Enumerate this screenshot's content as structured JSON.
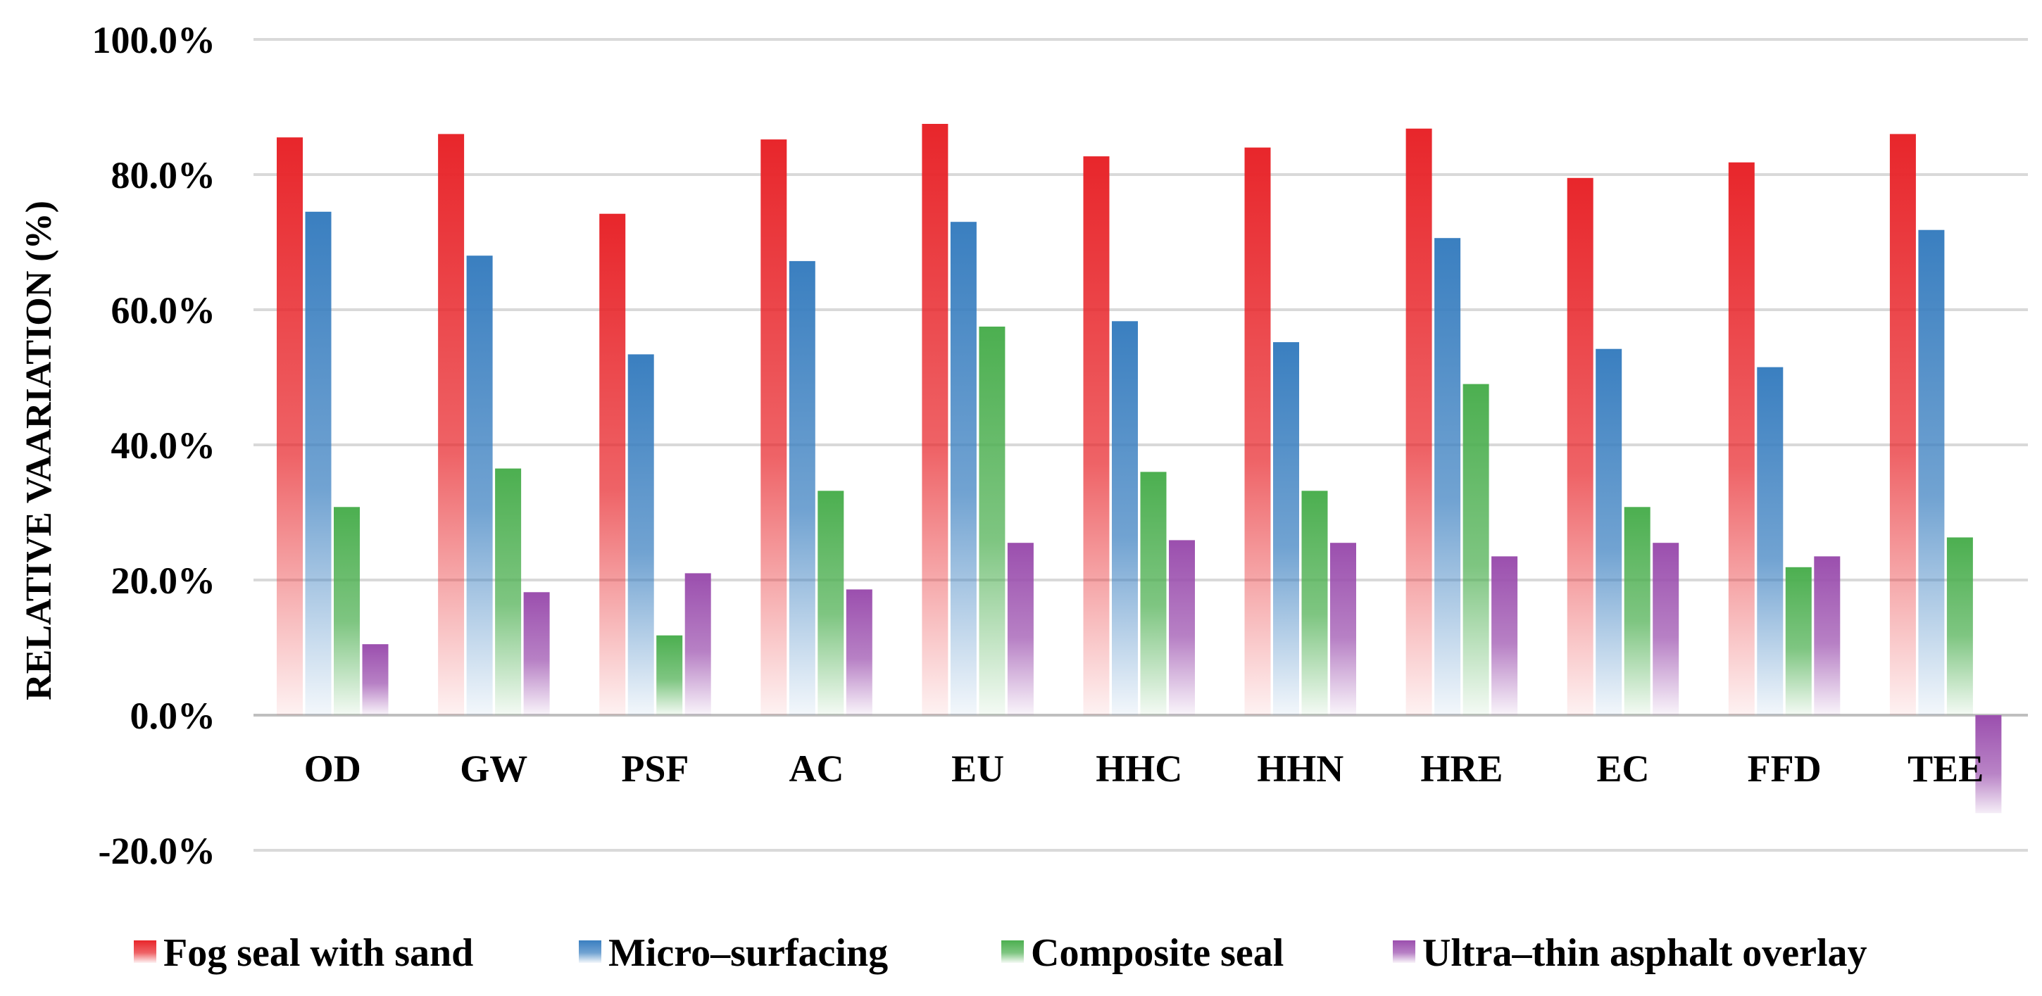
{
  "chart_data": {
    "type": "bar",
    "title": "",
    "xlabel": "",
    "ylabel": "RELATIVE VAARIATION (%)",
    "ylim": [
      -20,
      100
    ],
    "yticks": [
      100,
      80,
      60,
      40,
      20,
      0,
      -20
    ],
    "ytick_labels": [
      "100.0%",
      "80.0%",
      "60.0%",
      "40.0%",
      "20.0%",
      "0.0%",
      "-20.0%"
    ],
    "grid": true,
    "legend_position": "bottom",
    "categories": [
      "OD",
      "GW",
      "PSF",
      "AC",
      "EU",
      "HHC",
      "HHN",
      "HRE",
      "EC",
      "FFD",
      "TEE"
    ],
    "series": [
      {
        "name": "Fog seal with sand",
        "color": "#e8262b",
        "values": [
          85.5,
          86.0,
          74.2,
          85.2,
          87.5,
          82.7,
          84.0,
          86.8,
          79.5,
          81.8,
          86.0
        ]
      },
      {
        "name": "Micro–surfacing",
        "color": "#3a7fc0",
        "values": [
          74.5,
          68.0,
          53.4,
          67.2,
          73.0,
          58.3,
          55.2,
          70.6,
          54.2,
          51.5,
          71.8
        ]
      },
      {
        "name": "Composite seal",
        "color": "#4caf50",
        "values": [
          30.8,
          36.5,
          11.8,
          33.2,
          57.5,
          36.0,
          33.2,
          49.0,
          30.8,
          21.9,
          26.3
        ]
      },
      {
        "name": "Ultra–thin asphalt overlay",
        "color": "#9b4fae",
        "values": [
          10.5,
          18.2,
          21.0,
          18.6,
          25.5,
          25.9,
          25.5,
          23.5,
          25.5,
          23.5,
          -14.5
        ]
      }
    ]
  }
}
